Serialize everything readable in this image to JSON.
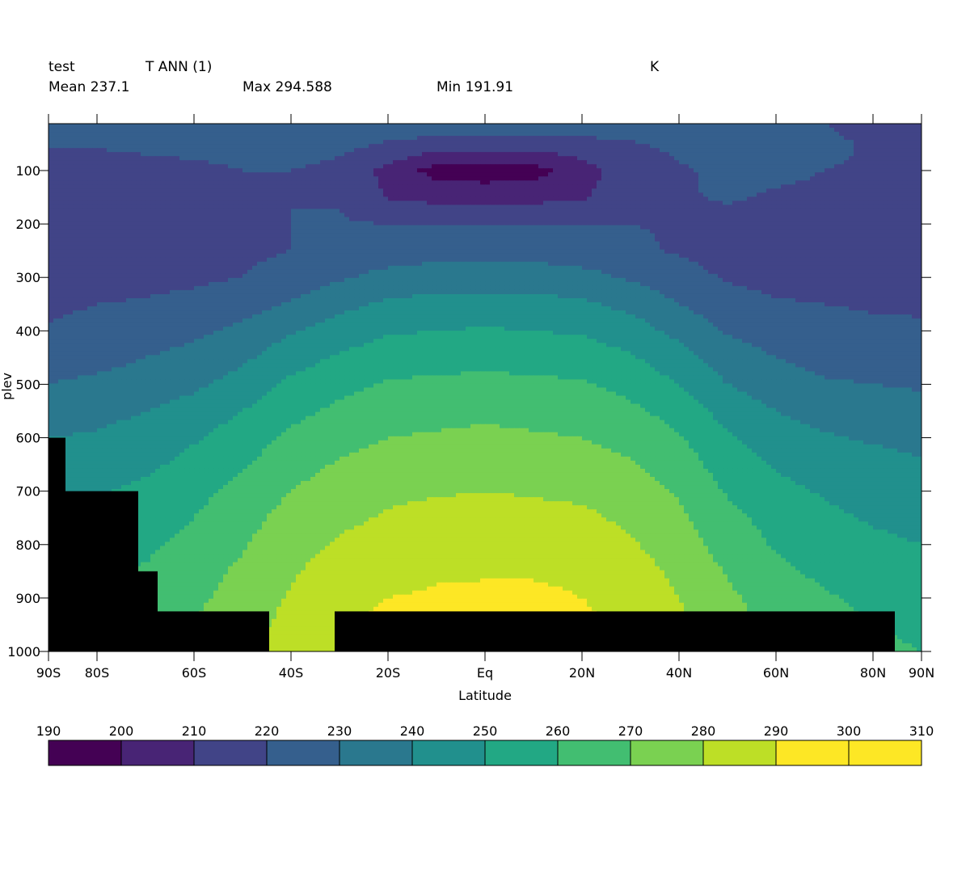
{
  "header": {
    "name": "test",
    "variable": "T ANN (1)",
    "units": "K",
    "mean_label": "Mean 237.1",
    "max_label": "Max 294.588",
    "min_label": "Min 191.91"
  },
  "chart_data": {
    "type": "heatmap",
    "xlabel": "Latitude",
    "ylabel": "plev",
    "xlim": [
      -90,
      90
    ],
    "ylim": [
      1000,
      10
    ],
    "x_ticks": [
      {
        "value": -90,
        "label": "90S"
      },
      {
        "value": -80,
        "label": "80S"
      },
      {
        "value": -60,
        "label": "60S"
      },
      {
        "value": -40,
        "label": "40S"
      },
      {
        "value": -20,
        "label": "20S"
      },
      {
        "value": 0,
        "label": "Eq"
      },
      {
        "value": 20,
        "label": "20N"
      },
      {
        "value": 40,
        "label": "40N"
      },
      {
        "value": 60,
        "label": "60N"
      },
      {
        "value": 80,
        "label": "80N"
      },
      {
        "value": 90,
        "label": "90N"
      }
    ],
    "y_ticks": [
      100,
      200,
      300,
      400,
      500,
      600,
      700,
      800,
      900,
      1000
    ],
    "colorbar": {
      "levels": [
        190,
        200,
        210,
        220,
        230,
        240,
        250,
        260,
        270,
        280,
        290,
        300,
        310
      ],
      "colors": [
        "#440154",
        "#482475",
        "#414487",
        "#355f8d",
        "#2a788e",
        "#21908d",
        "#22a884",
        "#42be71",
        "#7ad151",
        "#bddf26",
        "#fde725",
        "#fde725"
      ]
    },
    "grid": {
      "lat": [
        -90,
        -80,
        -70,
        -60,
        -50,
        -40,
        -30,
        -20,
        -10,
        0,
        10,
        20,
        30,
        40,
        50,
        60,
        70,
        80,
        90
      ],
      "plev": [
        10,
        50,
        100,
        150,
        200,
        250,
        300,
        350,
        400,
        450,
        500,
        550,
        600,
        650,
        700,
        750,
        800,
        850,
        900,
        950,
        1000
      ],
      "values": [
        [
          223,
          223,
          224,
          225,
          227,
          228,
          228,
          228,
          227,
          227,
          227,
          228,
          228,
          227,
          224,
          222,
          220,
          216,
          214
        ],
        [
          221,
          221,
          222,
          223,
          224,
          225,
          223,
          219,
          216,
          215,
          215,
          216,
          219,
          222,
          222,
          223,
          222,
          219,
          215
        ],
        [
          216,
          216,
          217,
          218,
          220,
          220,
          217,
          207,
          196,
          195,
          196,
          206,
          215,
          219,
          222,
          222,
          220,
          219,
          218
        ],
        [
          215,
          215,
          216,
          217,
          219,
          220,
          219,
          209,
          207,
          206,
          207,
          209,
          216,
          219,
          221,
          219,
          218,
          218,
          218
        ],
        [
          212,
          213,
          215,
          217,
          218,
          220,
          221,
          220,
          220,
          220,
          220,
          220,
          220,
          219,
          217,
          216,
          216,
          216,
          216
        ],
        [
          210,
          213,
          214,
          216,
          218,
          220,
          222,
          225,
          226,
          227,
          226,
          225,
          222,
          219,
          216,
          215,
          215,
          215,
          215
        ],
        [
          214,
          216,
          217,
          218,
          220,
          224,
          229,
          233,
          235,
          235,
          235,
          233,
          229,
          224,
          219,
          217,
          216,
          216,
          215
        ],
        [
          218,
          220,
          221,
          223,
          226,
          231,
          237,
          242,
          243,
          244,
          243,
          242,
          237,
          230,
          224,
          221,
          220,
          219,
          219
        ],
        [
          221,
          223,
          225,
          228,
          232,
          239,
          245,
          249,
          250,
          251,
          250,
          249,
          245,
          237,
          229,
          225,
          223,
          222,
          221
        ],
        [
          226,
          227,
          230,
          233,
          238,
          246,
          251,
          255,
          256,
          257,
          256,
          255,
          251,
          244,
          235,
          230,
          227,
          226,
          225
        ],
        [
          230,
          232,
          234,
          238,
          244,
          252,
          257,
          261,
          262,
          263,
          262,
          261,
          257,
          250,
          240,
          235,
          231,
          230,
          229
        ],
        [
          236,
          237,
          240,
          244,
          250,
          257,
          262,
          266,
          267,
          268,
          267,
          266,
          262,
          256,
          246,
          240,
          236,
          235,
          233
        ],
        [
          240,
          241,
          244,
          249,
          255,
          262,
          267,
          270,
          271,
          272,
          271,
          270,
          267,
          261,
          251,
          245,
          241,
          239,
          237
        ],
        [
          244,
          245,
          248,
          253,
          259,
          266,
          271,
          274,
          275,
          276,
          275,
          274,
          271,
          265,
          255,
          249,
          245,
          243,
          241
        ],
        [
          248,
          249,
          252,
          257,
          263,
          270,
          275,
          278,
          279,
          280,
          279,
          278,
          275,
          269,
          259,
          253,
          249,
          246,
          244
        ],
        [
          251,
          252,
          255,
          260,
          266,
          274,
          278,
          281,
          283,
          284,
          283,
          282,
          278,
          272,
          263,
          256,
          252,
          249,
          247
        ],
        [
          254,
          255,
          258,
          263,
          269,
          277,
          281,
          284,
          286,
          287,
          286,
          285,
          281,
          275,
          266,
          259,
          255,
          252,
          250
        ],
        [
          257,
          258,
          261,
          266,
          272,
          279,
          284,
          287,
          289,
          289,
          289,
          288,
          284,
          278,
          269,
          262,
          258,
          255,
          253
        ],
        [
          259,
          260,
          263,
          268,
          274,
          281,
          287,
          290,
          291,
          292,
          292,
          290,
          286,
          280,
          272,
          265,
          261,
          258,
          256
        ],
        [
          261,
          262,
          265,
          270,
          276,
          283,
          289,
          292,
          294,
          294,
          294,
          292,
          288,
          282,
          274,
          267,
          263,
          260,
          258
        ],
        [
          263,
          264,
          267,
          272,
          278,
          285,
          291,
          294,
          294,
          294,
          294,
          293,
          289,
          283,
          276,
          269,
          265,
          262,
          260
        ]
      ]
    },
    "mask_color": "#000000",
    "mask_regions": [
      {
        "lat": [
          -90,
          -86.5
        ],
        "plev": [
          600,
          1000
        ]
      },
      {
        "lat": [
          -86.5,
          -71.5
        ],
        "plev": [
          700,
          1000
        ]
      },
      {
        "lat": [
          -71.5,
          -67.5
        ],
        "plev": [
          850,
          1000
        ]
      },
      {
        "lat": [
          -67.5,
          -44.5
        ],
        "plev": [
          925,
          1000
        ]
      },
      {
        "lat": [
          -31,
          84.5
        ],
        "plev": [
          925,
          1000
        ]
      }
    ]
  }
}
